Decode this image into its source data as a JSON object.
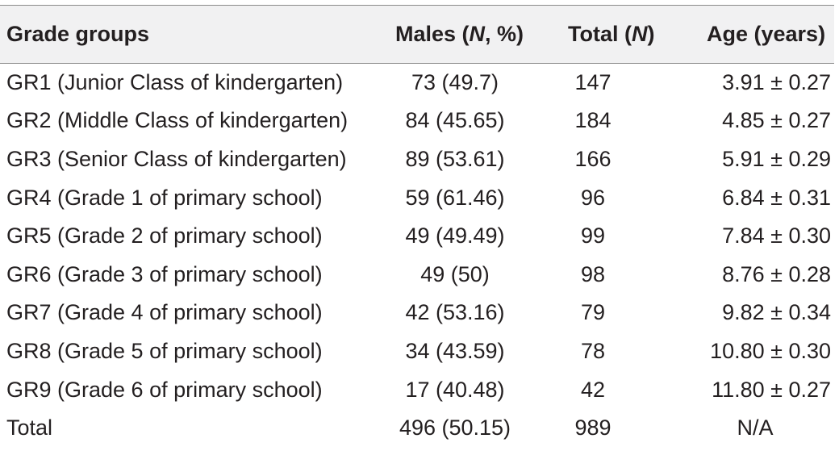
{
  "headers": {
    "grade": "Grade groups",
    "males_prefix": "Males (",
    "males_italic": "N",
    "males_suffix": ", %)",
    "total_prefix": "Total (",
    "total_italic": "N",
    "total_suffix": ")",
    "age": "Age (years)"
  },
  "rows": [
    {
      "grade": "GR1 (Junior Class of kindergarten)",
      "males": "73 (49.7)",
      "total": "147",
      "age": "3.91 ± 0.27"
    },
    {
      "grade": "GR2 (Middle Class of kindergarten)",
      "males": "84 (45.65)",
      "total": "184",
      "age": "4.85 ± 0.27"
    },
    {
      "grade": "GR3 (Senior Class of kindergarten)",
      "males": "89 (53.61)",
      "total": "166",
      "age": "5.91 ± 0.29"
    },
    {
      "grade": "GR4 (Grade 1 of primary school)",
      "males": "59 (61.46)",
      "total": "96",
      "age": "6.84 ± 0.31"
    },
    {
      "grade": "GR5 (Grade 2 of primary school)",
      "males": "49 (49.49)",
      "total": "99",
      "age": "7.84 ± 0.30"
    },
    {
      "grade": "GR6 (Grade 3 of primary school)",
      "males": "49 (50)",
      "total": "98",
      "age": "8.76 ± 0.28"
    },
    {
      "grade": "GR7 (Grade 4 of primary school)",
      "males": "42 (53.16)",
      "total": "79",
      "age": "9.82 ± 0.34"
    },
    {
      "grade": "GR8 (Grade 5 of primary school)",
      "males": "34 (43.59)",
      "total": "78",
      "age": "10.80 ± 0.30"
    },
    {
      "grade": "GR9 (Grade 6 of primary school)",
      "males": "17 (40.48)",
      "total": "42",
      "age": "11.80 ± 0.27"
    },
    {
      "grade": "Total",
      "males": "496 (50.15)",
      "total": "989",
      "age": "N/A"
    }
  ],
  "colors": {
    "header_background": "#f1f1f2",
    "rule": "#8a8a8a",
    "text": "#231f20"
  }
}
